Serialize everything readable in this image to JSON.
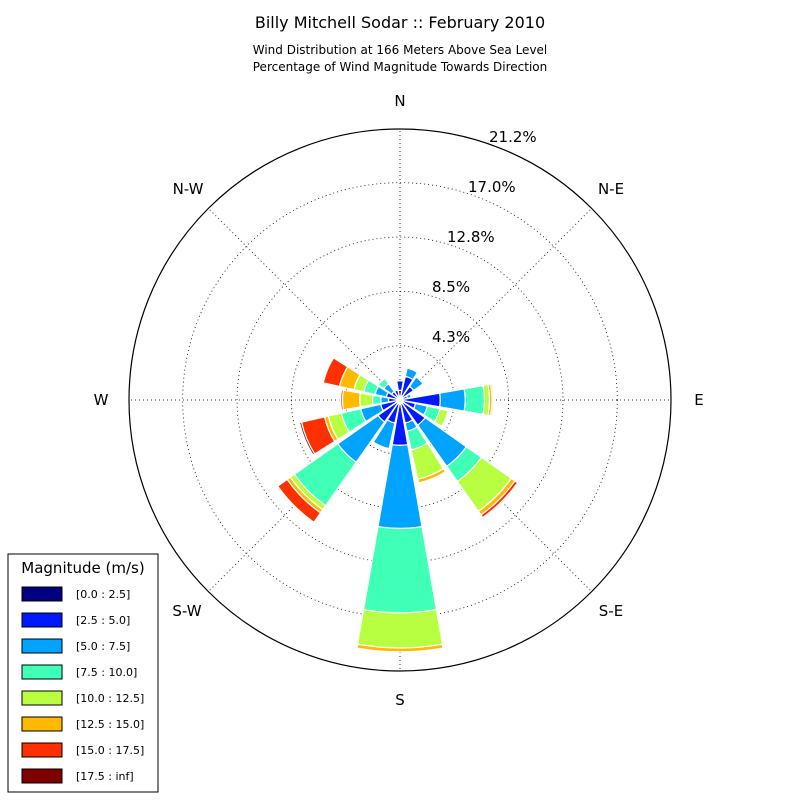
{
  "chart_data": {
    "type": "windrose",
    "title": "Billy Mitchell Sodar :: February 2010",
    "subtitle_lines": [
      "Wind Distribution at 166 Meters Above Sea Level",
      "Percentage of Wind Magnitude Towards Direction"
    ],
    "direction_labels": [
      "N",
      "N-E",
      "E",
      "S-E",
      "S",
      "S-W",
      "W",
      "N-W"
    ],
    "ring_labels": [
      "4.3%",
      "8.5%",
      "12.8%",
      "17.0%",
      "21.2%"
    ],
    "ring_values": [
      4.25,
      8.5,
      12.75,
      17.0,
      21.2
    ],
    "r_max": 21.2,
    "grid": true,
    "legend": {
      "title": "Magnitude (m/s)",
      "placement": "bottom-left",
      "entries": [
        "[0.0 : 2.5]",
        "[2.5 : 5.0]",
        "[5.0 : 7.5]",
        "[7.5 : 10.0]",
        "[10.0 : 12.5]",
        "[12.5 : 15.0]",
        "[15.0 : 17.5]",
        "[17.5 : inf]"
      ]
    },
    "bin_colors": [
      "#000080",
      "#0019ff",
      "#00a4ff",
      "#40ffb7",
      "#b7ff40",
      "#ffb900",
      "#ff3000",
      "#800000"
    ],
    "sector_width_deg": 22.5,
    "sectors": [
      {
        "direction_deg": 0,
        "values": [
          0.75,
          0.75,
          0.0,
          0.0,
          0.0,
          0.0,
          0.0,
          0.0
        ]
      },
      {
        "direction_deg": 22.5,
        "values": [
          0.35,
          1.55,
          0.65,
          0.0,
          0.0,
          0.0,
          0.0,
          0.0
        ]
      },
      {
        "direction_deg": 45,
        "values": [
          0.3,
          1.0,
          0.9,
          0.0,
          0.0,
          0.0,
          0.0,
          0.0
        ]
      },
      {
        "direction_deg": 67.5,
        "values": [
          0.2,
          0.4,
          0.3,
          0.0,
          0.0,
          0.0,
          0.0,
          0.0
        ]
      },
      {
        "direction_deg": 90,
        "values": [
          0.2,
          2.95,
          1.95,
          1.5,
          0.4,
          0.2,
          0.1,
          0.0
        ]
      },
      {
        "direction_deg": 112.5,
        "values": [
          0.25,
          1.0,
          0.95,
          1.0,
          0.65,
          0.0,
          0.0,
          0.0
        ]
      },
      {
        "direction_deg": 135,
        "values": [
          0.3,
          2.1,
          3.95,
          1.45,
          2.85,
          0.35,
          0.25,
          0.1
        ]
      },
      {
        "direction_deg": 157.5,
        "values": [
          0.3,
          1.55,
          0.65,
          1.5,
          2.35,
          0.3,
          0.0,
          0.0
        ]
      },
      {
        "direction_deg": 180,
        "values": [
          0.35,
          3.2,
          6.5,
          6.6,
          2.75,
          0.3,
          0.0,
          0.0
        ]
      },
      {
        "direction_deg": 202.5,
        "values": [
          0.3,
          1.55,
          2.05,
          0.0,
          0.0,
          0.0,
          0.0,
          0.0
        ]
      },
      {
        "direction_deg": 225,
        "values": [
          0.3,
          1.8,
          3.85,
          4.15,
          0.4,
          0.3,
          0.9,
          0.0
        ]
      },
      {
        "direction_deg": 247.5,
        "values": [
          0.3,
          1.25,
          1.6,
          1.55,
          1.05,
          0.3,
          1.85,
          0.15
        ]
      },
      {
        "direction_deg": 270,
        "values": [
          0.25,
          0.65,
          0.6,
          0.65,
          1.0,
          1.35,
          0.15,
          0.05
        ]
      },
      {
        "direction_deg": 292.5,
        "values": [
          0.25,
          0.85,
          0.9,
          0.9,
          0.8,
          1.15,
          1.3,
          0.0
        ]
      },
      {
        "direction_deg": 315,
        "values": [
          0.25,
          0.55,
          0.75,
          0.5,
          0.0,
          0.0,
          0.0,
          0.0
        ]
      },
      {
        "direction_deg": 337.5,
        "values": [
          0.35,
          0.45,
          0.0,
          0.0,
          0.0,
          0.0,
          0.0,
          0.0
        ]
      }
    ]
  }
}
